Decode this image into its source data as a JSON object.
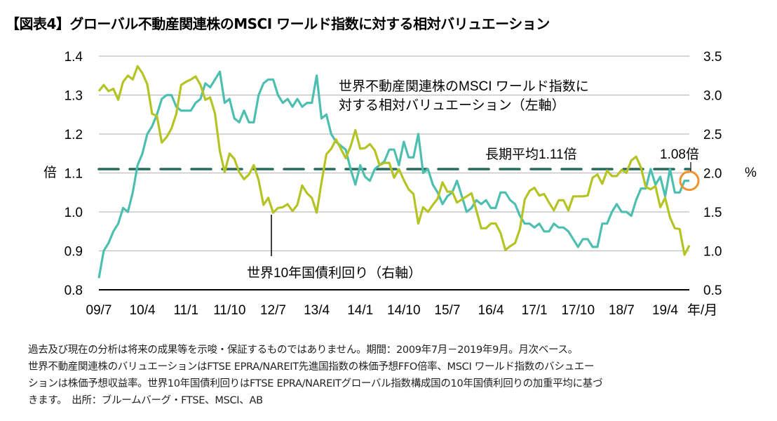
{
  "title": "【図表4】グローバル不動産関連株のMSCI ワールド指数に対する相対バリュエーション",
  "chart_data": {
    "type": "line",
    "frequency": "monthly",
    "x_start": "2009-07",
    "x_end": "2019-09",
    "x_ticks": [
      "09/7",
      "10/4",
      "11/1",
      "11/10",
      "12/7",
      "13/4",
      "14/1",
      "14/10",
      "15/7",
      "16/4",
      "17/1",
      "17/10",
      "18/7",
      "19/4"
    ],
    "x_unit_label": "年/月",
    "y_left": {
      "label": "倍",
      "lim": [
        0.8,
        1.4
      ],
      "ticks": [
        "0.8",
        "0.9",
        "1.0",
        "1.1",
        "1.2",
        "1.3",
        "1.4"
      ]
    },
    "y_right": {
      "label": "%",
      "lim": [
        0.5,
        3.5
      ],
      "ticks": [
        "0.5",
        "1.0",
        "1.5",
        "2.0",
        "2.5",
        "3.0",
        "3.5"
      ]
    },
    "grid": true,
    "series": [
      {
        "name": "世界不動産関連株のMSCI ワールド指数に対する相対バリュエーション（左軸）",
        "name_lines": [
          "世界不動産関連株のMSCI ワールド指数に",
          "対する相対バリュエーション（左軸）"
        ],
        "axis": "left",
        "color": "#4dbfb0",
        "values": [
          0.83,
          0.9,
          0.92,
          0.95,
          0.97,
          1.01,
          1.0,
          1.05,
          1.12,
          1.15,
          1.2,
          1.22,
          1.25,
          1.29,
          1.3,
          1.3,
          1.27,
          1.26,
          1.26,
          1.26,
          1.28,
          1.29,
          1.33,
          1.32,
          1.34,
          1.36,
          1.28,
          1.29,
          1.24,
          1.23,
          1.26,
          1.23,
          1.23,
          1.3,
          1.33,
          1.34,
          1.34,
          1.3,
          1.28,
          1.29,
          1.27,
          1.29,
          1.27,
          1.28,
          1.28,
          1.35,
          1.24,
          1.25,
          1.2,
          1.18,
          1.17,
          1.16,
          1.11,
          1.07,
          1.12,
          1.09,
          1.08,
          1.11,
          1.12,
          1.13,
          1.16,
          1.16,
          1.12,
          1.18,
          1.14,
          1.14,
          1.2,
          1.1,
          1.11,
          1.07,
          1.05,
          1.02,
          1.04,
          1.05,
          1.08,
          1.04,
          1.0,
          1.01,
          1.03,
          1.02,
          1.03,
          1.01,
          1.01,
          1.05,
          1.05,
          1.03,
          1.02,
          0.99,
          0.97,
          0.97,
          0.96,
          0.97,
          0.95,
          0.95,
          0.97,
          0.96,
          0.96,
          0.95,
          0.93,
          0.91,
          0.93,
          0.93,
          0.91,
          0.91,
          0.97,
          0.97,
          1.0,
          1.02,
          1.0,
          1.0,
          0.99,
          1.03,
          1.06,
          1.06,
          1.11,
          1.07,
          1.09,
          1.04,
          1.11,
          1.05,
          1.05,
          1.08,
          1.08
        ]
      },
      {
        "name": "世界10年国債利回り（右軸）",
        "axis": "right",
        "color": "#b5c424",
        "values": [
          3.05,
          3.13,
          3.05,
          3.08,
          2.94,
          3.17,
          3.25,
          3.2,
          3.37,
          3.28,
          3.14,
          2.76,
          2.73,
          2.39,
          2.46,
          2.57,
          2.76,
          3.13,
          3.17,
          3.2,
          3.24,
          3.13,
          2.94,
          2.97,
          2.76,
          2.28,
          2.01,
          2.25,
          2.18,
          2.01,
          1.92,
          1.98,
          2.1,
          1.91,
          1.59,
          1.68,
          1.49,
          1.55,
          1.56,
          1.6,
          1.51,
          1.59,
          1.84,
          1.74,
          1.68,
          1.49,
          1.88,
          2.24,
          2.31,
          2.43,
          2.31,
          2.19,
          2.34,
          2.55,
          2.31,
          2.32,
          2.37,
          2.29,
          2.1,
          2.13,
          2.13,
          1.94,
          2.05,
          1.91,
          1.79,
          1.73,
          1.35,
          1.56,
          1.5,
          1.59,
          1.67,
          1.88,
          1.76,
          1.76,
          1.62,
          1.66,
          1.7,
          1.74,
          1.52,
          1.29,
          1.29,
          1.35,
          1.35,
          1.23,
          1.01,
          1.06,
          1.1,
          1.28,
          1.66,
          1.77,
          1.81,
          1.71,
          1.73,
          1.62,
          1.52,
          1.65,
          1.65,
          1.52,
          1.7,
          1.7,
          1.7,
          1.71,
          1.94,
          1.98,
          1.86,
          2.03,
          1.96,
          1.96,
          2.04,
          2.0,
          2.16,
          2.21,
          2.07,
          1.82,
          1.79,
          1.83,
          1.56,
          1.68,
          1.43,
          1.29,
          1.28,
          0.95,
          1.07
        ]
      }
    ],
    "reference_line": {
      "label": "長期平均1.11倍",
      "value": 1.11,
      "axis": "left",
      "color": "#256b5e",
      "style": "dashed"
    },
    "annotations": [
      {
        "label": "1.08倍",
        "value": 1.08,
        "highlight_color": "#f0922e"
      }
    ]
  },
  "footnote": [
    "過去及び現在の分析は将来の成果等を示唆・保証するものではありません。期間：2009年7月－2019年9月。月次ベース。",
    "世界不動産関連株のバリュエーションはFTSE EPRA/NAREIT先進国指数の株価予想FFO倍率、MSCI ワールド指数のバシュエー",
    "ションは株価予想収益率。世界10年国債利回りはFTSE EPRA/NAREITグローバル指数構成国の10年国債利回りの加重平均に基づ",
    "きます。　出所：ブルームバーグ・FTSE、MSCI、AB"
  ]
}
